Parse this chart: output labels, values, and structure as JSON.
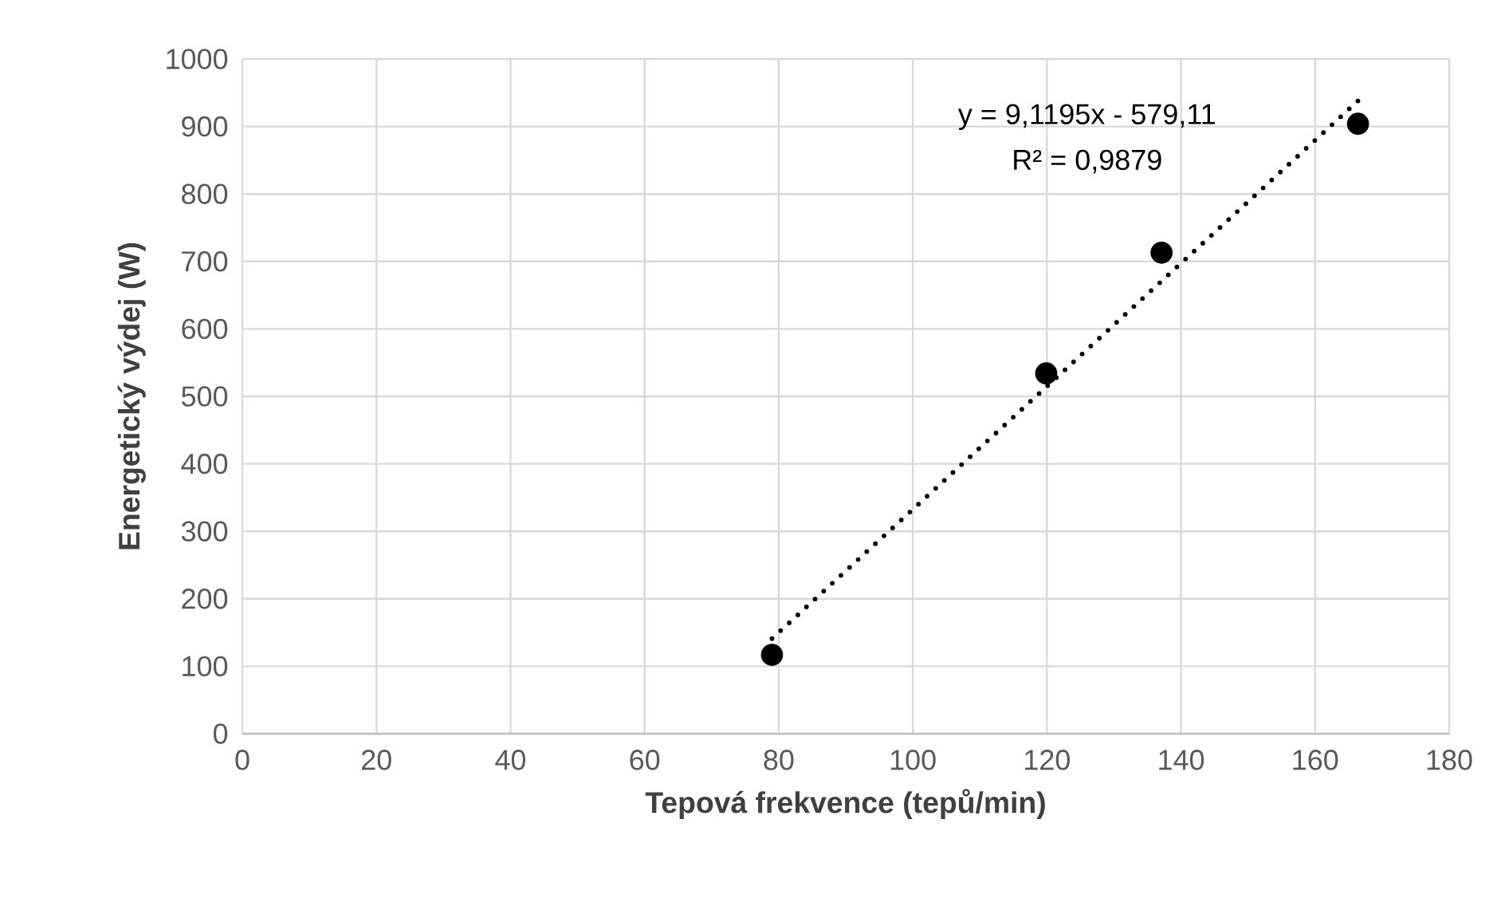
{
  "chart_data": {
    "type": "scatter",
    "xlabel": "Tepová frekvence (tepů/min)",
    "ylabel": "Energetický výdej (W)",
    "series": [
      {
        "color": "#000000",
        "marker": "circle",
        "x": [
          79.0,
          119.9,
          137.1,
          166.4
        ],
        "values": [
          117,
          534,
          713,
          904
        ]
      },
      {
        "type": "line",
        "color": "#000000",
        "line_style": "dotted",
        "marker": "none",
        "x": [
          79.0,
          166.4
        ],
        "values": [
          141,
          938
        ]
      }
    ],
    "annotations": [
      "y = 9,1195x - 579,11",
      "R² = 0,9879"
    ],
    "xlim": [
      0,
      180
    ],
    "xticks": [
      0,
      20,
      40,
      60,
      80,
      100,
      120,
      140,
      160,
      180
    ],
    "ylim": [
      0,
      1000
    ],
    "yticks": [
      0,
      100,
      200,
      300,
      400,
      500,
      600,
      700,
      800,
      900,
      1000
    ],
    "grid": true
  }
}
